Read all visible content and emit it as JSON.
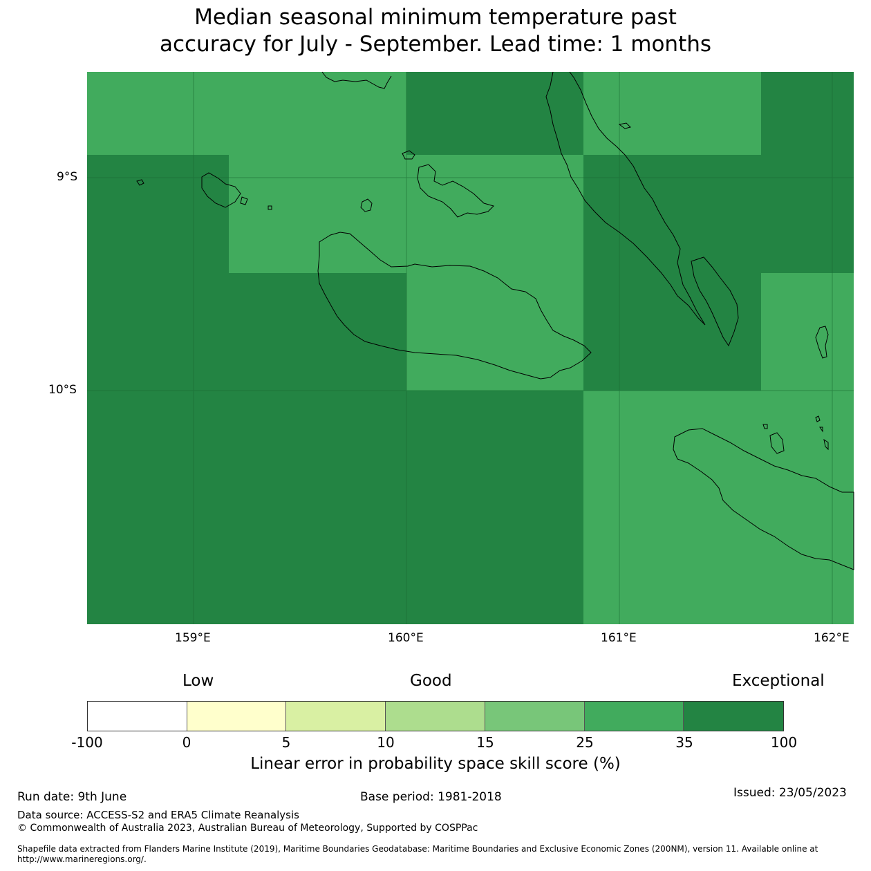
{
  "title_line1": "Median seasonal minimum temperature past",
  "title_line2": "accuracy for July - September. Lead time: 1 months",
  "map": {
    "lat_ticks": [
      "9°S",
      "10°S"
    ],
    "lon_ticks": [
      "159°E",
      "160°E",
      "161°E",
      "162°E"
    ],
    "colors": {
      "good_25_35": "#41ab5d",
      "exceptional_35_100": "#238443"
    }
  },
  "colorbar": {
    "category_labels": {
      "low": "Low",
      "good": "Good",
      "exceptional": "Exceptional"
    },
    "ticks": [
      "-100",
      "0",
      "5",
      "10",
      "15",
      "25",
      "35",
      "100"
    ],
    "colors": [
      "#ffffff",
      "#ffffcc",
      "#d9f0a3",
      "#addd8e",
      "#78c679",
      "#41ab5d",
      "#238443"
    ],
    "title": "Linear error in probability space skill score (%)"
  },
  "footer": {
    "run_date": "Run date: 9th June",
    "base_period": "Base period: 1981-2018",
    "issued": "Issued: 23/05/2023",
    "data_source": "Data source: ACCESS-S2 and ERA5 Climate Reanalysis",
    "copyright": "© Commonwealth of Australia 2023, Australian Bureau of Meteorology, Supported by COSPPac",
    "shapefile_line1": "Shapefile data extracted from Flanders Marine Institute (2019), Maritime Boundaries Geodatabase: Maritime Boundaries and Exclusive Economic Zones (200NM), version 11. Available online at",
    "shapefile_line2": "http://www.marineregions.org/."
  }
}
